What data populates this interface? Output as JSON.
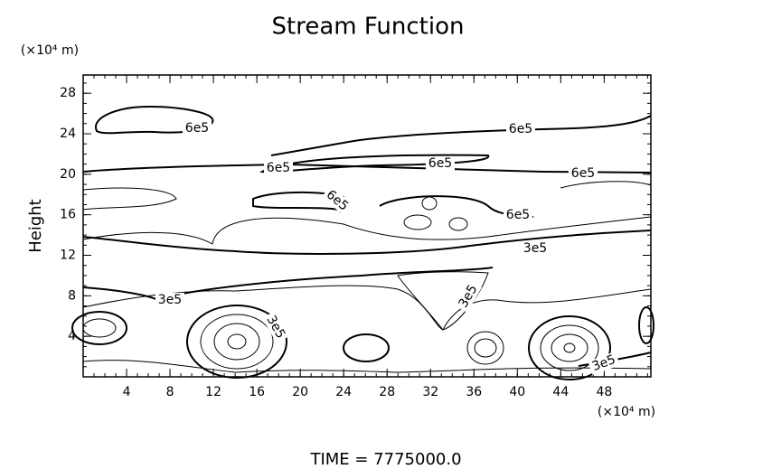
{
  "chart_data": {
    "type": "contour",
    "title": "Stream Function",
    "ylabel": "Height",
    "y_unit": "(×10⁴ m)",
    "x_unit": "(×10⁴ m)",
    "footer": "TIME = 7775000.0",
    "xlim": [
      0,
      52.3
    ],
    "ylim": [
      0,
      29.8
    ],
    "xticks": [
      4,
      8,
      12,
      16,
      20,
      24,
      28,
      32,
      36,
      40,
      44,
      48
    ],
    "yticks": [
      4,
      8,
      12,
      16,
      20,
      24,
      28
    ],
    "levels": [
      300000,
      600000
    ],
    "value_labels": [
      "3e5",
      "6e5"
    ],
    "color": "#000000"
  }
}
